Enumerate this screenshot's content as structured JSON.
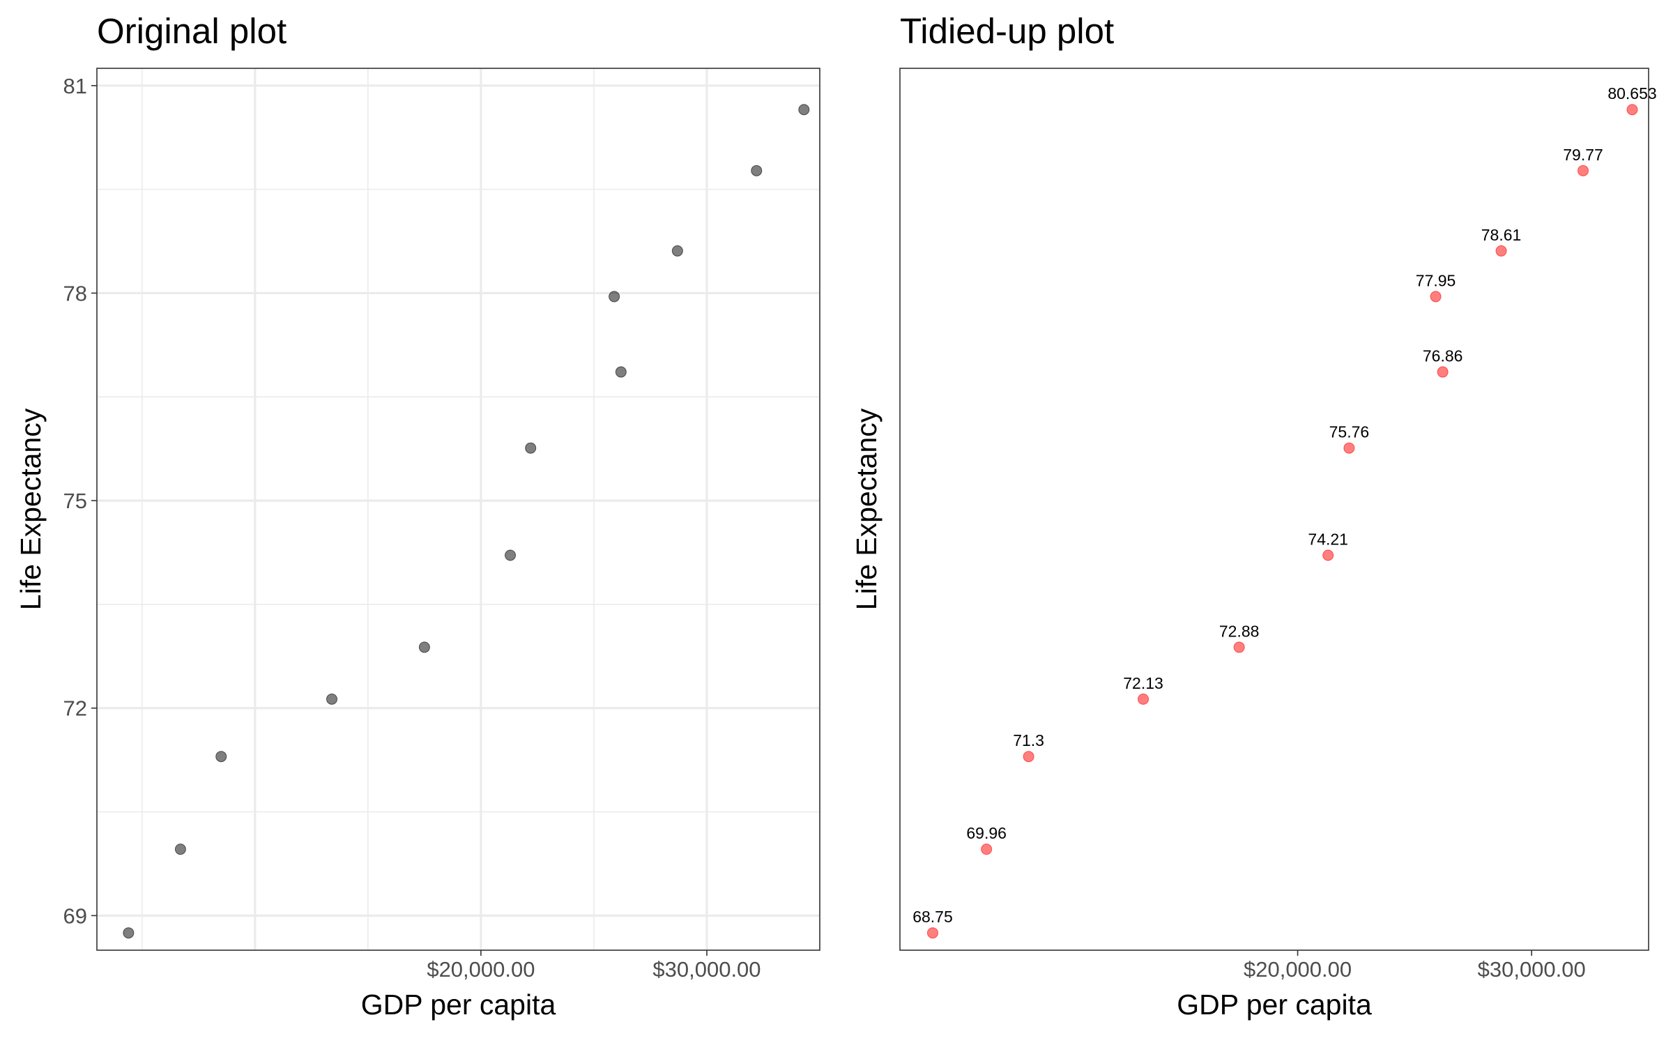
{
  "chart_data": [
    {
      "type": "scatter",
      "title": "Original plot",
      "xlabel": "GDP per capita",
      "ylabel": "Life Expectancy",
      "x_ticks": [
        "$20,000.00",
        "$30,000.00"
      ],
      "x_tick_values": [
        20000,
        30000
      ],
      "y_ticks": [
        "69",
        "72",
        "75",
        "78",
        "81"
      ],
      "y_tick_values": [
        69,
        72,
        75,
        78,
        81
      ],
      "xlim": [
        3000,
        35000
      ],
      "ylim": [
        68.5,
        81.25
      ],
      "grid": true,
      "point_color": "#000000",
      "point_alpha": 0.5,
      "points": [
        {
          "x": 4400,
          "y": 68.75
        },
        {
          "x": 6700,
          "y": 69.96
        },
        {
          "x": 8500,
          "y": 71.3
        },
        {
          "x": 13400,
          "y": 72.13
        },
        {
          "x": 17500,
          "y": 72.88
        },
        {
          "x": 21300,
          "y": 74.21
        },
        {
          "x": 22200,
          "y": 75.76
        },
        {
          "x": 26200,
          "y": 76.86
        },
        {
          "x": 25900,
          "y": 77.95
        },
        {
          "x": 28700,
          "y": 78.61
        },
        {
          "x": 32200,
          "y": 79.77
        },
        {
          "x": 34300,
          "y": 80.653
        }
      ]
    },
    {
      "type": "scatter",
      "title": "Tidied-up plot",
      "xlabel": "GDP per capita",
      "ylabel": "Life Expectancy",
      "x_ticks": [
        "$20,000.00",
        "$30,000.00"
      ],
      "x_tick_values": [
        20000,
        30000
      ],
      "y_ticks": [],
      "y_tick_values": [],
      "xlim": [
        3000,
        35000
      ],
      "ylim": [
        68.5,
        81.25
      ],
      "grid": false,
      "point_color": "#ff0000",
      "point_alpha": 0.5,
      "points": [
        {
          "x": 4400,
          "y": 68.75,
          "label": "68.75"
        },
        {
          "x": 6700,
          "y": 69.96,
          "label": "69.96"
        },
        {
          "x": 8500,
          "y": 71.3,
          "label": "71.3"
        },
        {
          "x": 13400,
          "y": 72.13,
          "label": "72.13"
        },
        {
          "x": 17500,
          "y": 72.88,
          "label": "72.88"
        },
        {
          "x": 21300,
          "y": 74.21,
          "label": "74.21"
        },
        {
          "x": 22200,
          "y": 75.76,
          "label": "75.76"
        },
        {
          "x": 26200,
          "y": 76.86,
          "label": "76.86"
        },
        {
          "x": 25900,
          "y": 77.95,
          "label": "77.95"
        },
        {
          "x": 28700,
          "y": 78.61,
          "label": "78.61"
        },
        {
          "x": 32200,
          "y": 79.77,
          "label": "79.77"
        },
        {
          "x": 34300,
          "y": 80.653,
          "label": "80.653"
        }
      ]
    }
  ]
}
